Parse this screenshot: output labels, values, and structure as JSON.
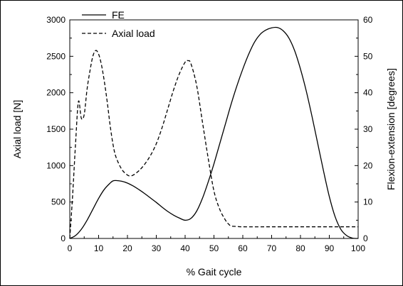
{
  "chart_data": {
    "type": "line",
    "title": "",
    "xlabel": "% Gait cycle",
    "ylabel_left": "Axial load [N]",
    "ylabel_right": "Flexion-extension [degrees]",
    "xlim": [
      0,
      100
    ],
    "ylim_left": [
      0,
      3000
    ],
    "ylim_right": [
      0,
      60
    ],
    "x_ticks": [
      "0",
      "10",
      "20",
      "30",
      "40",
      "50",
      "60",
      "70",
      "80",
      "90",
      "100"
    ],
    "y_left_ticks": [
      "0",
      "500",
      "1000",
      "1500",
      "2000",
      "2500",
      "3000"
    ],
    "y_right_ticks": [
      "0",
      "10",
      "20",
      "30",
      "40",
      "50",
      "60"
    ],
    "grid": false,
    "legend_position": "top-left",
    "series": [
      {
        "name": "FE",
        "axis": "right",
        "style": "solid",
        "color": "#000000",
        "x": [
          0,
          2,
          4,
          6,
          8,
          10,
          12,
          14,
          15,
          16,
          18,
          20,
          22,
          24,
          26,
          28,
          30,
          32,
          34,
          36,
          38,
          40,
          42,
          44,
          46,
          48,
          50,
          52,
          54,
          56,
          58,
          60,
          62,
          64,
          66,
          68,
          70,
          72,
          74,
          76,
          78,
          80,
          82,
          84,
          86,
          88,
          90,
          92,
          94,
          96,
          98,
          100
        ],
        "y": [
          0,
          0.8,
          2.5,
          5.0,
          8.0,
          11.0,
          13.5,
          15.2,
          15.8,
          15.9,
          15.7,
          15.2,
          14.4,
          13.4,
          12.3,
          11.1,
          9.9,
          8.6,
          7.4,
          6.4,
          5.6,
          5.0,
          5.5,
          7.5,
          11.0,
          15.5,
          20.5,
          26.0,
          31.5,
          37.0,
          42.0,
          46.5,
          50.5,
          53.8,
          56.0,
          57.2,
          57.8,
          57.9,
          57.0,
          55.0,
          51.5,
          46.5,
          40.5,
          33.5,
          26.0,
          18.5,
          11.5,
          6.0,
          2.5,
          0.8,
          0.1,
          0
        ]
      },
      {
        "name": "Axial load",
        "axis": "left",
        "style": "dashed",
        "color": "#000000",
        "x": [
          0,
          1,
          2,
          3,
          4,
          5,
          6,
          7,
          8,
          9,
          10,
          11,
          12,
          13,
          14,
          15,
          16,
          18,
          20,
          21,
          22,
          24,
          26,
          28,
          30,
          32,
          34,
          36,
          38,
          40,
          41,
          42,
          44,
          46,
          48,
          50,
          52,
          54,
          55,
          56,
          58,
          60,
          70,
          80,
          90,
          100
        ],
        "y": [
          0,
          600,
          1300,
          1880,
          1650,
          1700,
          2050,
          2300,
          2500,
          2580,
          2530,
          2380,
          2150,
          1870,
          1550,
          1290,
          1120,
          950,
          870,
          860,
          870,
          930,
          1020,
          1140,
          1300,
          1520,
          1780,
          2040,
          2260,
          2420,
          2440,
          2400,
          2100,
          1600,
          1100,
          650,
          400,
          250,
          200,
          170,
          165,
          160,
          160,
          160,
          160,
          160
        ]
      }
    ]
  }
}
